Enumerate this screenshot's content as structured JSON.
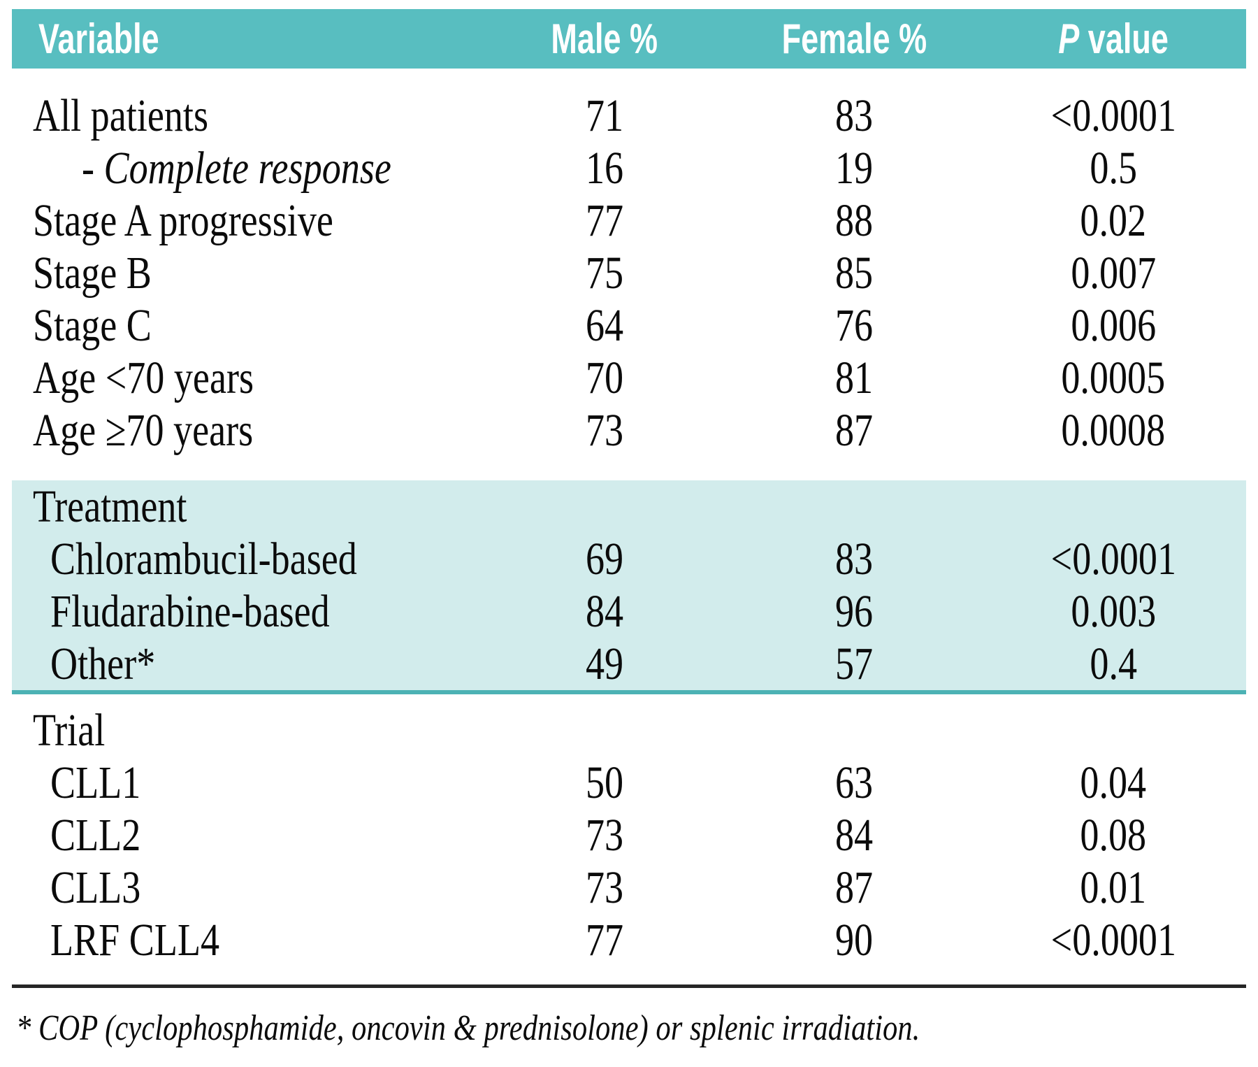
{
  "table": {
    "header": {
      "variable": "Variable",
      "male": "Male %",
      "female": "Female %",
      "p_italic": "P",
      "p_rest": " value"
    },
    "sections": [
      {
        "rows": [
          {
            "label": "All patients",
            "male": "71",
            "female": "83",
            "p": "<0.0001"
          },
          {
            "label": "- Complete response",
            "male": "16",
            "female": "19",
            "p": "0.5"
          },
          {
            "label": "Stage A progressive",
            "male": "77",
            "female": "88",
            "p": "0.02"
          },
          {
            "label": "Stage B",
            "male": "75",
            "female": "85",
            "p": "0.007"
          },
          {
            "label": "Stage C",
            "male": "64",
            "female": "76",
            "p": "0.006"
          },
          {
            "label": "Age <70 years",
            "male": "70",
            "female": "81",
            "p": "0.0005"
          },
          {
            "label": "Age ≥70 years",
            "male": "73",
            "female": "87",
            "p": "0.0008"
          }
        ]
      },
      {
        "heading": "Treatment",
        "rows": [
          {
            "label": "Chlorambucil-based",
            "male": "69",
            "female": "83",
            "p": "<0.0001"
          },
          {
            "label": "Fludarabine-based",
            "male": "84",
            "female": "96",
            "p": "0.003"
          },
          {
            "label": "Other*",
            "male": "49",
            "female": "57",
            "p": "0.4"
          }
        ]
      },
      {
        "heading": "Trial",
        "rows": [
          {
            "label": "CLL1",
            "male": "50",
            "female": "63",
            "p": "0.04"
          },
          {
            "label": "CLL2",
            "male": "73",
            "female": "84",
            "p": "0.08"
          },
          {
            "label": "CLL3",
            "male": "73",
            "female": "87",
            "p": "0.01"
          },
          {
            "label": "LRF CLL4",
            "male": "77",
            "female": "90",
            "p": "<0.0001"
          }
        ]
      }
    ],
    "footnote": "* COP (cyclophosphamide, oncovin & prednisolone) or splenic irradiation.",
    "colors": {
      "header_bg": "#58bec0",
      "header_text": "#ffffff",
      "band_bg": "#d2ecec",
      "band_border": "#4cb2b4",
      "body_text": "#0b0b0b",
      "rule": "#262626"
    }
  }
}
